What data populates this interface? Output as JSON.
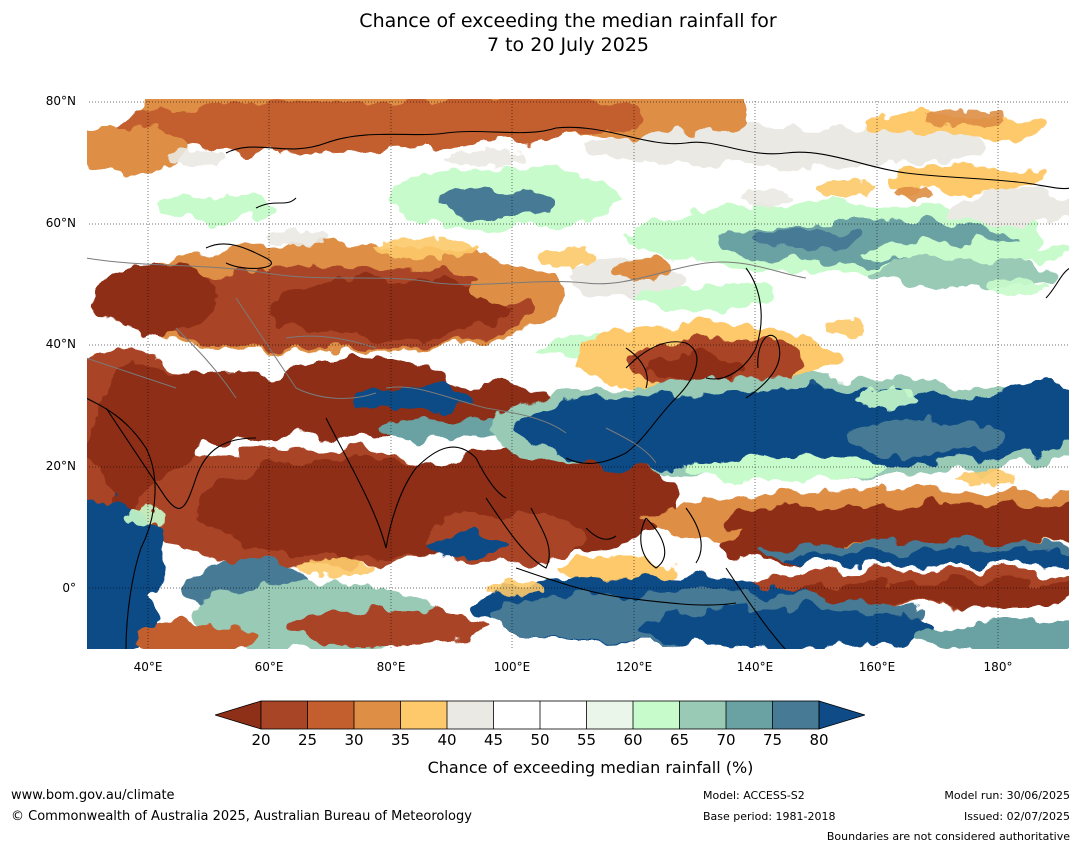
{
  "title": {
    "line1": "Chance of exceeding the median rainfall for",
    "line2": "7 to 20 July 2025"
  },
  "map": {
    "lat_labels": [
      "80°N",
      "60°N",
      "40°N",
      "20°N",
      "0°"
    ],
    "lon_labels": [
      "40°E",
      "60°E",
      "80°E",
      "100°E",
      "120°E",
      "140°E",
      "160°E",
      "180°"
    ],
    "colors": {
      "c15": "#8e2f18",
      "c20": "#a94527",
      "c25": "#c35e2f",
      "c30": "#de8f45",
      "c35": "#fdc96a",
      "c40": "#ebe9e4",
      "c45": "#ffffff",
      "c55": "#e9f6e9",
      "c60": "#c8fbcb",
      "c65": "#98cab6",
      "c70": "#6aa2a3",
      "c75": "#467a95",
      "c80": "#0f4b86"
    }
  },
  "colorbar": {
    "ticks": [
      "20",
      "25",
      "30",
      "35",
      "40",
      "45",
      "50",
      "55",
      "60",
      "65",
      "70",
      "75",
      "80"
    ],
    "label": "Chance of exceeding median rainfall (%)"
  },
  "footer": {
    "website": "www.bom.gov.au/climate",
    "copyright": "© Commonwealth of Australia 2025, Australian Bureau of Meteorology",
    "model": "Model: ACCESS-S2",
    "base_period": "Base period: 1981-2018",
    "model_run": "Model run: 30/06/2025",
    "issued": "Issued: 02/07/2025",
    "disclaimer": "Boundaries are not considered authoritative"
  }
}
